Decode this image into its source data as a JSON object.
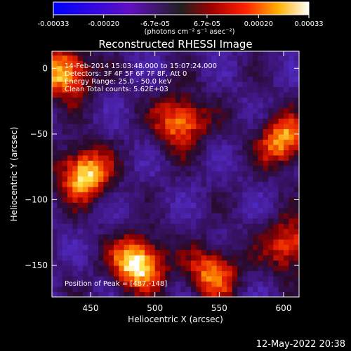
{
  "colorbar": {
    "tick_labels": [
      "-0.00033",
      "-0.00020",
      "-6.7e-05",
      "6.7e-05",
      "0.00020",
      "0.00033"
    ],
    "unit_label": "(photons cm⁻² s⁻¹ asec⁻²)",
    "range": [
      -0.00033,
      0.00033
    ]
  },
  "chart_data": {
    "type": "heatmap",
    "title": "Reconstructed RHESSI Image",
    "xlabel": "Heliocentric X (arcsec)",
    "ylabel": "Heliocentric Y (arcsec)",
    "xlim": [
      420,
      612
    ],
    "ylim": [
      -174,
      13
    ],
    "x_ticks": [
      450,
      500,
      550,
      600
    ],
    "y_ticks": [
      0,
      -50,
      -100,
      -150
    ],
    "annotations": [
      "14-Feb-2014 15:03:48.000 to 15:07:24.000",
      "Detectors: 3F 4F 5F 6F 7F 8F, Att 0",
      "Energy Range: 25.0 - 50.0 keV",
      "Clean    Total counts: 5.62E+03"
    ],
    "peak_label": "Position of Peak = [487,-148]",
    "peak": [
      487,
      -148
    ],
    "bright_sources": [
      {
        "x": 487,
        "y": -148,
        "level": 1.0
      },
      {
        "x": 430,
        "y": -3,
        "level": 0.85
      },
      {
        "x": 445,
        "y": -80,
        "level": 0.9
      },
      {
        "x": 520,
        "y": -40,
        "level": 0.75
      },
      {
        "x": 600,
        "y": -55,
        "level": 0.75
      },
      {
        "x": 545,
        "y": -155,
        "level": 0.7
      },
      {
        "x": 605,
        "y": -135,
        "level": 0.65
      }
    ]
  },
  "footer": {
    "date": "12-May-2022 20:38"
  }
}
